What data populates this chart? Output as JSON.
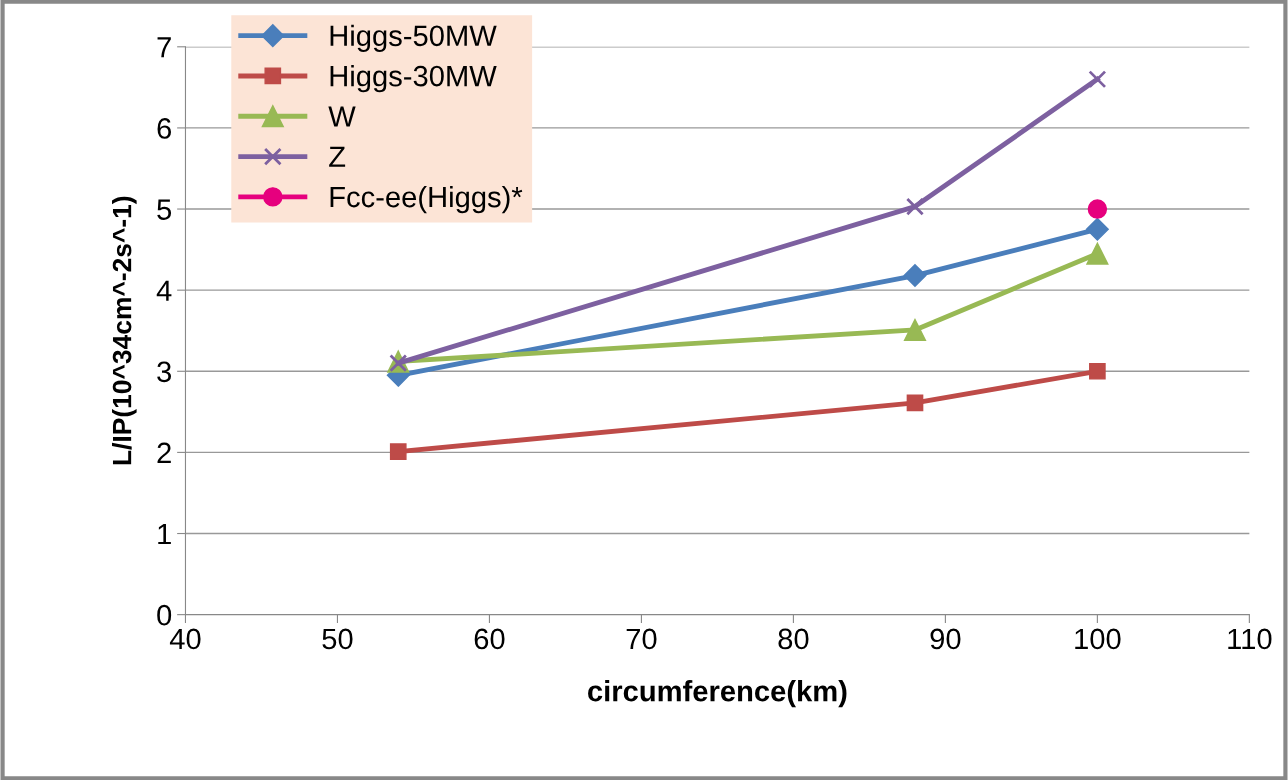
{
  "chart_data": {
    "type": "line",
    "xlabel": "circumference(km)",
    "ylabel": "L/IP(10^34cm^-2s^-1)",
    "xlim": [
      40,
      110
    ],
    "xticks": [
      40,
      50,
      60,
      70,
      80,
      90,
      100,
      110
    ],
    "ylim": [
      0,
      7
    ],
    "yticks": [
      0,
      1,
      2,
      3,
      4,
      5,
      6,
      7
    ],
    "grid": "y",
    "legend": "top left",
    "series": [
      {
        "name": "Higgs-50MW",
        "color": "#4a7ebb",
        "marker": "diamond",
        "x": [
          54,
          88,
          100
        ],
        "values": [
          2.95,
          4.18,
          4.75
        ]
      },
      {
        "name": "Higgs-30MW",
        "color": "#be4b48",
        "marker": "square",
        "x": [
          54,
          88,
          100
        ],
        "values": [
          2.01,
          2.61,
          3.0
        ]
      },
      {
        "name": "W",
        "color": "#98b954",
        "marker": "triangle",
        "x": [
          54,
          88,
          100
        ],
        "values": [
          3.12,
          3.51,
          4.45
        ]
      },
      {
        "name": "Z",
        "color": "#7d60a0",
        "marker": "cross",
        "x": [
          54,
          88,
          100
        ],
        "values": [
          3.1,
          5.03,
          6.6
        ]
      },
      {
        "name": "Fcc-ee(Higgs)*",
        "color": "#e6007e",
        "marker": "circle",
        "x": [
          100
        ],
        "values": [
          5.0
        ]
      }
    ]
  }
}
